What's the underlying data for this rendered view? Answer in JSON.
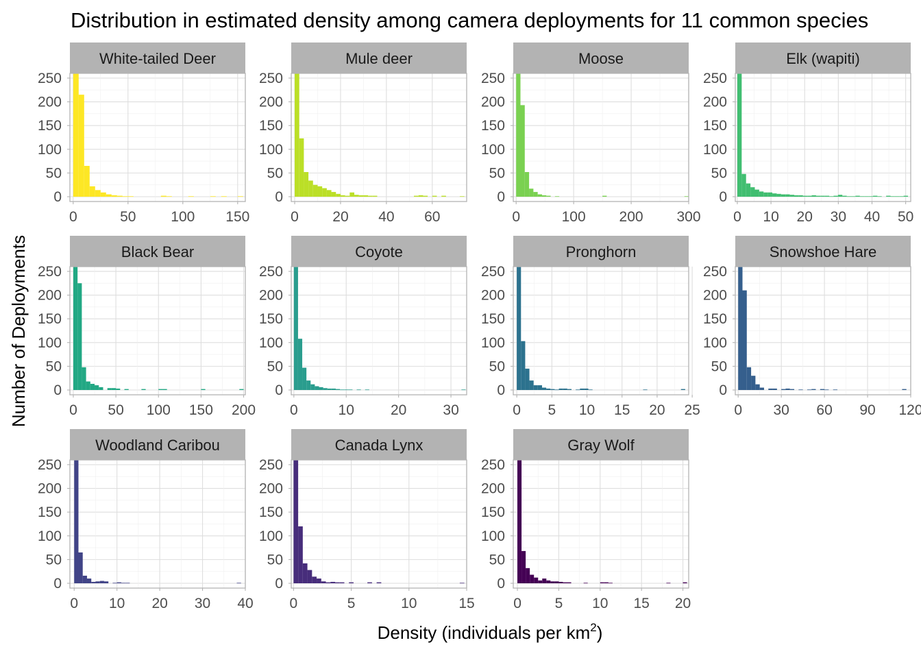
{
  "chart_data": {
    "type": "bar",
    "title": "Distribution in estimated density among camera deployments for 11 common species",
    "xlabel": "Density (individuals per km",
    "xlabel_sup": "2",
    "xlabel_close": ")",
    "ylabel": "Number of Deployments",
    "y_ticks": [
      0,
      50,
      100,
      150,
      200,
      250
    ],
    "ylim": [
      0,
      260
    ],
    "grid": true,
    "panels": [
      {
        "name": "White-tailed Deer",
        "color": "#FDE725",
        "bin_width": 5,
        "xlim": [
          -3,
          157
        ],
        "x_ticks": [
          0,
          50,
          100,
          150
        ],
        "x_tick_labels": [
          "0",
          "50",
          "100",
          "150"
        ],
        "bins": [
          0,
          5,
          10,
          15,
          20,
          25,
          30,
          35,
          40,
          45,
          50,
          55,
          60,
          65,
          70,
          75,
          80,
          85,
          90,
          95,
          100,
          105,
          110,
          115,
          120,
          125,
          130,
          135,
          140,
          145,
          150
        ],
        "values": [
          260,
          215,
          65,
          22,
          14,
          9,
          5,
          3,
          2,
          1,
          1,
          0,
          0,
          0,
          0,
          0,
          2,
          1,
          0,
          0,
          0,
          1,
          0,
          0,
          0,
          1,
          0,
          1,
          0,
          0,
          1
        ]
      },
      {
        "name": "Mule deer",
        "color": "#BBDF27",
        "bin_width": 2,
        "xlim": [
          -1.5,
          75
        ],
        "x_ticks": [
          0,
          20,
          40,
          60
        ],
        "x_tick_labels": [
          "0",
          "20",
          "40",
          "60"
        ],
        "bins": [
          0,
          2,
          4,
          6,
          8,
          10,
          12,
          14,
          16,
          18,
          20,
          22,
          24,
          26,
          28,
          30,
          32,
          34,
          36,
          38,
          40,
          42,
          44,
          46,
          48,
          50,
          52,
          54,
          56,
          58,
          60,
          62,
          64,
          66,
          68,
          70,
          72
        ],
        "values": [
          260,
          123,
          52,
          34,
          25,
          22,
          18,
          14,
          10,
          6,
          3,
          2,
          9,
          4,
          3,
          3,
          2,
          2,
          0,
          0,
          0,
          0,
          0,
          0,
          0,
          0,
          2,
          3,
          2,
          0,
          2,
          0,
          2,
          0,
          0,
          0,
          1
        ]
      },
      {
        "name": "Moose",
        "color": "#7AD151",
        "bin_width": 7.5,
        "xlim": [
          -5,
          300
        ],
        "x_ticks": [
          0,
          100,
          200,
          300
        ],
        "x_tick_labels": [
          "0",
          "100",
          "200",
          "300"
        ],
        "bins": [
          0,
          7.5,
          15,
          22.5,
          30,
          37.5,
          45,
          52.5,
          60,
          67.5,
          75,
          82.5,
          90,
          97.5,
          105,
          112.5,
          120,
          127.5,
          135,
          142.5,
          150,
          157.5,
          165,
          172.5,
          180,
          187.5,
          195,
          202.5,
          210,
          217.5,
          225,
          232.5,
          240,
          247.5,
          255,
          262.5,
          270,
          277.5,
          285,
          292.5
        ],
        "values": [
          260,
          193,
          52,
          17,
          10,
          5,
          3,
          2,
          0,
          1,
          0,
          0,
          0,
          0,
          0,
          0,
          0,
          0,
          0,
          0,
          2,
          0,
          0,
          0,
          0,
          0,
          0,
          0,
          0,
          0,
          0,
          0,
          0,
          0,
          0,
          0,
          0,
          0,
          0,
          1
        ]
      },
      {
        "name": "Elk (wapiti)",
        "color": "#41BE71",
        "bin_width": 1.3,
        "xlim": [
          -0.6,
          51.5
        ],
        "x_ticks": [
          0,
          10,
          20,
          30,
          40,
          50
        ],
        "x_tick_labels": [
          "0",
          "10",
          "20",
          "30",
          "40",
          "50"
        ],
        "bins": [
          0,
          1.3,
          2.6,
          3.9,
          5.2,
          6.5,
          7.8,
          9.1,
          10.4,
          11.7,
          13,
          14.3,
          15.6,
          16.9,
          18.2,
          19.5,
          20.8,
          22.1,
          23.4,
          24.7,
          26,
          27.3,
          28.6,
          29.9,
          31.2,
          32.5,
          33.8,
          35.1,
          36.4,
          37.7,
          39,
          40.3,
          41.6,
          42.9,
          44.2,
          45.5,
          46.8,
          48.1,
          49.4
        ],
        "values": [
          260,
          48,
          28,
          20,
          15,
          11,
          9,
          9,
          7,
          6,
          5,
          5,
          4,
          3,
          3,
          2,
          2,
          3,
          2,
          2,
          2,
          1,
          2,
          4,
          2,
          1,
          1,
          2,
          1,
          1,
          1,
          2,
          1,
          0,
          2,
          1,
          1,
          1,
          2
        ]
      },
      {
        "name": "Black Bear",
        "color": "#22A884",
        "bin_width": 5,
        "xlim": [
          -4,
          202
        ],
        "x_ticks": [
          0,
          50,
          100,
          150,
          200
        ],
        "x_tick_labels": [
          "0",
          "50",
          "100",
          "150",
          "200"
        ],
        "bins": [
          0,
          5,
          10,
          15,
          20,
          25,
          30,
          35,
          40,
          45,
          50,
          55,
          60,
          65,
          70,
          75,
          80,
          85,
          90,
          95,
          100,
          105,
          110,
          115,
          120,
          125,
          130,
          135,
          140,
          145,
          150,
          155,
          160,
          165,
          170,
          175,
          180,
          185,
          190,
          195
        ],
        "values": [
          260,
          225,
          48,
          18,
          13,
          10,
          6,
          0,
          4,
          4,
          3,
          0,
          2,
          0,
          0,
          0,
          2,
          0,
          0,
          0,
          2,
          2,
          0,
          0,
          0,
          0,
          0,
          0,
          0,
          0,
          2,
          0,
          0,
          0,
          0,
          0,
          0,
          0,
          0,
          2
        ]
      },
      {
        "name": "Coyote",
        "color": "#2A9D8E",
        "bin_width": 0.8,
        "xlim": [
          -0.5,
          33
        ],
        "x_ticks": [
          0,
          10,
          20,
          30
        ],
        "x_tick_labels": [
          "0",
          "10",
          "20",
          "30"
        ],
        "bins": [
          0,
          0.8,
          1.6,
          2.4,
          3.2,
          4,
          4.8,
          5.6,
          6.4,
          7.2,
          8,
          8.8,
          9.6,
          10.4,
          11.2,
          12,
          12.8,
          13.6,
          14.4,
          15.2,
          16,
          16.8,
          17.6,
          18.4,
          19.2,
          20,
          20.8,
          21.6,
          22.4,
          23.2,
          24,
          24.8,
          25.6,
          26.4,
          27.2,
          28,
          28.8,
          29.6,
          30.4,
          31.2,
          32
        ],
        "values": [
          260,
          108,
          47,
          20,
          12,
          8,
          6,
          4,
          3,
          3,
          2,
          1,
          1,
          1,
          0,
          1,
          0,
          1,
          0,
          0,
          0,
          0,
          0,
          0,
          0,
          0,
          0,
          0,
          0,
          0,
          0,
          0,
          0,
          0,
          0,
          0,
          0,
          0,
          0,
          0,
          1
        ]
      },
      {
        "name": "Pronghorn",
        "color": "#2C728E",
        "bin_width": 0.6,
        "xlim": [
          -0.5,
          24.5
        ],
        "x_ticks": [
          0,
          5,
          10,
          15,
          20,
          25
        ],
        "x_tick_labels": [
          "0",
          "5",
          "10",
          "15",
          "20",
          "25"
        ],
        "bins": [
          0,
          0.6,
          1.2,
          1.8,
          2.4,
          3,
          3.6,
          4.2,
          4.8,
          5.4,
          6,
          6.6,
          7.2,
          7.8,
          8.4,
          9,
          9.6,
          10.2,
          10.8,
          11.4,
          12,
          12.6,
          13.2,
          13.8,
          14.4,
          15,
          15.6,
          16.2,
          16.8,
          17.4,
          18,
          18.6,
          19.2,
          19.8,
          20.4,
          21,
          21.6,
          22.2,
          22.8,
          23.4
        ],
        "values": [
          260,
          103,
          45,
          20,
          10,
          10,
          5,
          3,
          2,
          1,
          3,
          3,
          2,
          0,
          1,
          3,
          3,
          1,
          0,
          0,
          0,
          0,
          0,
          0,
          0,
          0,
          0,
          0,
          0,
          0,
          1,
          0,
          0,
          0,
          0,
          0,
          0,
          0,
          0,
          2
        ]
      },
      {
        "name": "Snowshoe Hare",
        "color": "#355F8D",
        "bin_width": 3,
        "xlim": [
          -2,
          120
        ],
        "x_ticks": [
          0,
          30,
          60,
          90,
          120
        ],
        "x_tick_labels": [
          "0",
          "30",
          "60",
          "90",
          "120"
        ],
        "bins": [
          0,
          3,
          6,
          9,
          12,
          15,
          18,
          21,
          24,
          27,
          30,
          33,
          36,
          39,
          42,
          45,
          48,
          51,
          54,
          57,
          60,
          63,
          66,
          69,
          72,
          75,
          78,
          81,
          84,
          87,
          90,
          93,
          96,
          99,
          102,
          105,
          108,
          111,
          114
        ],
        "values": [
          260,
          210,
          48,
          30,
          12,
          5,
          0,
          3,
          3,
          0,
          2,
          3,
          2,
          0,
          1,
          0,
          1,
          2,
          0,
          2,
          1,
          0,
          1,
          0,
          0,
          0,
          0,
          0,
          0,
          0,
          0,
          0,
          0,
          0,
          0,
          0,
          0,
          0,
          2
        ]
      },
      {
        "name": "Woodland Caribou",
        "color": "#414487",
        "bin_width": 1,
        "xlim": [
          -1,
          40
        ],
        "x_ticks": [
          0,
          10,
          20,
          30,
          40
        ],
        "x_tick_labels": [
          "0",
          "10",
          "20",
          "30",
          "40"
        ],
        "bins": [
          0,
          1,
          2,
          3,
          4,
          5,
          6,
          7,
          8,
          9,
          10,
          11,
          12,
          13,
          14,
          15,
          16,
          17,
          18,
          19,
          20,
          21,
          22,
          23,
          24,
          25,
          26,
          27,
          28,
          29,
          30,
          31,
          32,
          33,
          34,
          35,
          36,
          37,
          38
        ],
        "values": [
          260,
          65,
          16,
          10,
          3,
          4,
          5,
          4,
          0,
          1,
          2,
          1,
          1,
          0,
          0,
          0,
          0,
          0,
          0,
          0,
          0,
          0,
          0,
          0,
          0,
          0,
          0,
          0,
          0,
          0,
          0,
          0,
          0,
          0,
          0,
          0,
          0,
          0,
          1
        ]
      },
      {
        "name": "Canada Lynx",
        "color": "#472D7B",
        "bin_width": 0.4,
        "xlim": [
          -0.2,
          15
        ],
        "x_ticks": [
          0,
          5,
          10,
          15
        ],
        "x_tick_labels": [
          "0",
          "5",
          "10",
          "15"
        ],
        "bins": [
          0,
          0.4,
          0.8,
          1.2,
          1.6,
          2,
          2.4,
          2.8,
          3.2,
          3.6,
          4,
          4.4,
          4.8,
          5.2,
          5.6,
          6,
          6.4,
          6.8,
          7.2,
          7.6,
          8,
          8.4,
          8.8,
          9.2,
          9.6,
          10,
          10.4,
          10.8,
          11.2,
          11.6,
          12,
          12.4,
          12.8,
          13.2,
          13.6,
          14,
          14.4
        ],
        "values": [
          260,
          120,
          42,
          28,
          14,
          10,
          4,
          2,
          3,
          2,
          2,
          0,
          2,
          0,
          0,
          0,
          2,
          0,
          2,
          0,
          0,
          0,
          0,
          0,
          0,
          0,
          0,
          0,
          0,
          0,
          0,
          0,
          0,
          0,
          0,
          0,
          1
        ]
      },
      {
        "name": "Gray Wolf",
        "color": "#440154",
        "bin_width": 0.5,
        "xlim": [
          -0.5,
          20.7
        ],
        "x_ticks": [
          0,
          5,
          10,
          15,
          20
        ],
        "x_tick_labels": [
          "0",
          "5",
          "10",
          "15",
          "20"
        ],
        "bins": [
          0,
          0.5,
          1,
          1.5,
          2,
          2.5,
          3,
          3.5,
          4,
          4.5,
          5,
          5.5,
          6,
          6.5,
          7,
          7.5,
          8,
          8.5,
          9,
          9.5,
          10,
          10.5,
          11,
          11.5,
          12,
          12.5,
          13,
          13.5,
          14,
          14.5,
          15,
          15.5,
          16,
          16.5,
          17,
          17.5,
          18,
          18.5,
          19,
          19.5,
          20
        ],
        "values": [
          260,
          68,
          32,
          18,
          12,
          6,
          10,
          6,
          4,
          4,
          3,
          2,
          2,
          0,
          0,
          0,
          1,
          0,
          0,
          0,
          2,
          2,
          1,
          0,
          0,
          0,
          0,
          0,
          0,
          0,
          0,
          0,
          0,
          0,
          0,
          0,
          1,
          0,
          0,
          0,
          2
        ]
      }
    ]
  }
}
